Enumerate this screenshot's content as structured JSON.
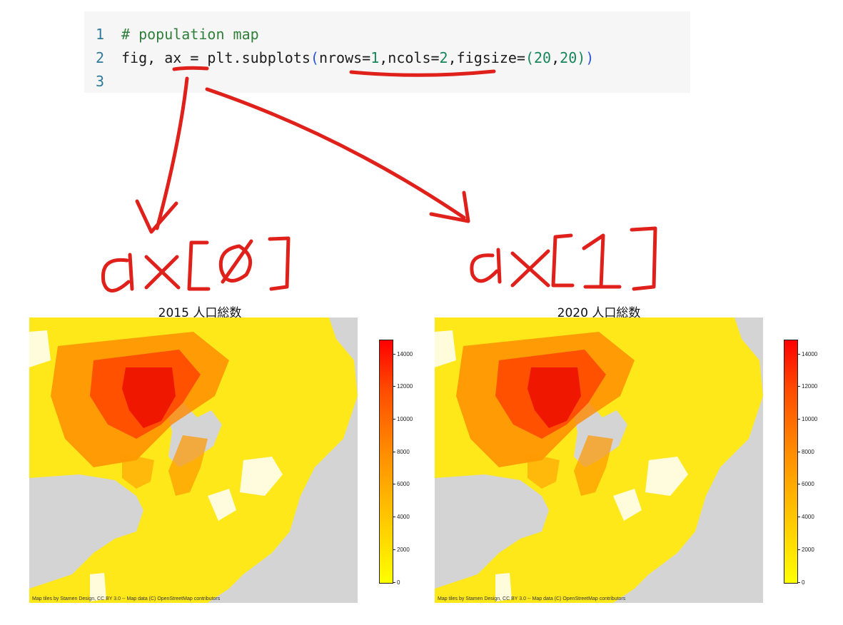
{
  "code": {
    "lines": [
      {
        "num": "1",
        "comment": "# population map"
      },
      {
        "num": "2",
        "pre": "fig, ax = plt.subplots",
        "open": "(",
        "k1": "nrows=",
        "v1": "1",
        "k2": ",ncols=",
        "v2": "2",
        "k3": ",figsize=",
        "open2": "(",
        "v3": "20",
        "comma": ",",
        "v4": "20",
        "close2": ")",
        "close": ")"
      },
      {
        "num": "3"
      }
    ]
  },
  "annotations": {
    "left_label": "ax[0]",
    "right_label": "ax[1]",
    "ink_color": "#e0201a"
  },
  "maps": [
    {
      "title": "2015 人口総数",
      "attribution": "Map tiles by Stamen Design, CC BY 3.0 -- Map data (C) OpenStreetMap contributors"
    },
    {
      "title": "2020 人口総数",
      "attribution": "Map tiles by Stamen Design, CC BY 3.0 -- Map data (C) OpenStreetMap contributors"
    }
  ],
  "colorbar": {
    "ticks": [
      "14000",
      "12000",
      "10000",
      "8000",
      "6000",
      "4000",
      "2000",
      "0"
    ],
    "min": 0,
    "max": 15000,
    "colors": [
      "#ffff00",
      "#ff0000"
    ]
  }
}
